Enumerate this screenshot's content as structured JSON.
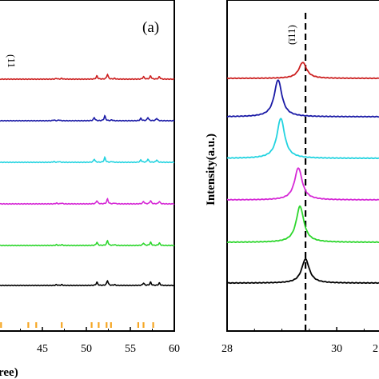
{
  "chart_data": [
    {
      "panel": "a",
      "type": "line",
      "panel_label": "(a)",
      "clipped_axis_label": "ree)",
      "clipped_peak_label": "(11",
      "xlim": [
        40,
        60
      ],
      "x_ticks": [
        45,
        50,
        55,
        60
      ],
      "reference_color": "#f5a623",
      "reference_peaks": [
        40.3,
        43.4,
        44.3,
        47.2,
        50.6,
        51.4,
        52.3,
        52.8,
        55.9,
        56.5,
        57.6
      ],
      "peaks": [
        [
          46.6,
          1
        ],
        [
          47.2,
          1
        ],
        [
          51.2,
          4
        ],
        [
          52.4,
          6
        ],
        [
          53.2,
          1
        ],
        [
          56.5,
          3
        ],
        [
          57.3,
          4
        ],
        [
          58.3,
          3
        ]
      ],
      "series": [
        {
          "color": "#cc1f1f",
          "shift": 0
        },
        {
          "color": "#1a1aa6",
          "shift": -0.3
        },
        {
          "color": "#22d3e0",
          "shift": -0.3
        },
        {
          "color": "#d62ad6",
          "shift": 0
        },
        {
          "color": "#2dd62d",
          "shift": 0
        },
        {
          "color": "#000000",
          "shift": 0
        }
      ]
    },
    {
      "panel": "b",
      "type": "line",
      "ylabel": "Intensity(a.u.)",
      "clipped_tick_label": "2",
      "peak_label": "(ī11)",
      "xlim": [
        28,
        30.8
      ],
      "x_ticks": [
        28,
        30
      ],
      "reference_line_x": 29.43,
      "series": [
        {
          "color": "#cc1f1f",
          "center": 29.38,
          "height": 20
        },
        {
          "color": "#1a1aa6",
          "center": 28.93,
          "height": 46
        },
        {
          "color": "#22d3e0",
          "center": 28.98,
          "height": 50
        },
        {
          "color": "#d62ad6",
          "center": 29.3,
          "height": 40
        },
        {
          "color": "#2dd62d",
          "center": 29.33,
          "height": 45
        },
        {
          "color": "#000000",
          "center": 29.43,
          "height": 30
        }
      ]
    }
  ]
}
